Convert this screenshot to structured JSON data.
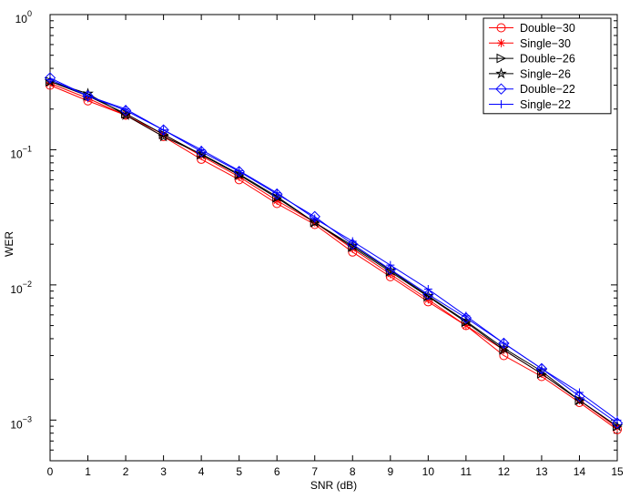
{
  "chart_data": {
    "type": "line",
    "title": "",
    "xlabel": "SNR (dB)",
    "ylabel": "WER",
    "xlim": [
      0,
      15
    ],
    "ylim": [
      0.0005,
      1
    ],
    "yscale": "log",
    "grid": false,
    "legend_position": "top-right",
    "x": [
      0,
      1,
      2,
      3,
      4,
      5,
      6,
      7,
      8,
      9,
      10,
      11,
      12,
      13,
      14,
      15
    ],
    "x_ticks": [
      "0",
      "1",
      "2",
      "3",
      "4",
      "5",
      "6",
      "7",
      "8",
      "9",
      "10",
      "11",
      "12",
      "13",
      "14",
      "15"
    ],
    "y_ticks": [
      {
        "value": 0.001,
        "base": "10",
        "exp": "−3"
      },
      {
        "value": 0.01,
        "base": "10",
        "exp": "−2"
      },
      {
        "value": 0.1,
        "base": "10",
        "exp": "−1"
      },
      {
        "value": 1,
        "base": "10",
        "exp": "0"
      }
    ],
    "series": [
      {
        "name": "Double−30",
        "color": "#ff0000",
        "marker": "circle",
        "values": [
          0.3,
          0.23,
          0.18,
          0.125,
          0.085,
          0.06,
          0.04,
          0.028,
          0.0175,
          0.0115,
          0.0075,
          0.005,
          0.003,
          0.0021,
          0.00135,
          0.00085
        ]
      },
      {
        "name": "Single−30",
        "color": "#ff0000",
        "marker": "asterisk",
        "values": [
          0.31,
          0.24,
          0.18,
          0.13,
          0.09,
          0.063,
          0.042,
          0.029,
          0.0185,
          0.012,
          0.0078,
          0.005,
          0.0033,
          0.0022,
          0.0014,
          0.00088
        ]
      },
      {
        "name": "Double−26",
        "color": "#000000",
        "marker": "triangle-right",
        "values": [
          0.32,
          0.25,
          0.185,
          0.13,
          0.092,
          0.065,
          0.044,
          0.029,
          0.019,
          0.0125,
          0.0082,
          0.0053,
          0.0033,
          0.0022,
          0.0014,
          0.0009
        ]
      },
      {
        "name": "Single−26",
        "color": "#000000",
        "marker": "star",
        "values": [
          0.32,
          0.26,
          0.18,
          0.125,
          0.093,
          0.066,
          0.045,
          0.029,
          0.0195,
          0.0128,
          0.0083,
          0.0054,
          0.0034,
          0.0023,
          0.0014,
          0.0009
        ]
      },
      {
        "name": "Double−22",
        "color": "#0000ff",
        "marker": "diamond",
        "values": [
          0.34,
          0.25,
          0.195,
          0.14,
          0.097,
          0.069,
          0.047,
          0.032,
          0.02,
          0.013,
          0.0085,
          0.0057,
          0.0037,
          0.0024,
          0.0015,
          0.00095
        ]
      },
      {
        "name": "Single−22",
        "color": "#0000ff",
        "marker": "plus",
        "values": [
          0.33,
          0.25,
          0.2,
          0.14,
          0.1,
          0.07,
          0.048,
          0.031,
          0.021,
          0.014,
          0.0093,
          0.0059,
          0.0037,
          0.0024,
          0.0016,
          0.001
        ]
      }
    ]
  }
}
